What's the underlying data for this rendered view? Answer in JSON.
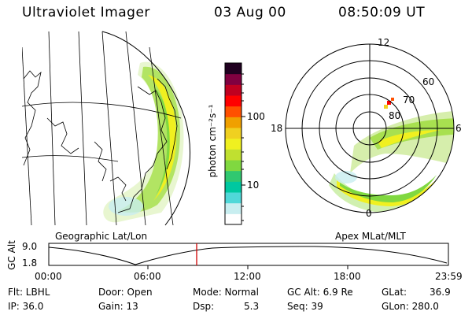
{
  "header": {
    "title": "Ultraviolet Imager",
    "date": "03 Aug 00",
    "time": "08:50:09 UT"
  },
  "geo_map": {
    "caption": "Geographic Lat/Lon"
  },
  "colorbar": {
    "unit_label": "photon cm⁻²s⁻¹",
    "ticks": [
      "100",
      "10"
    ],
    "colors": [
      "#ffffff",
      "#c8eef0",
      "#50d8d8",
      "#00c8a0",
      "#30c870",
      "#80d840",
      "#c0e030",
      "#f0f020",
      "#f0d020",
      "#f0a000",
      "#ff5000",
      "#ff0000",
      "#c00020",
      "#800040",
      "#200020"
    ]
  },
  "polar": {
    "caption": "Apex MLat/MLT",
    "mlt_labels": {
      "top": "12",
      "left": "18",
      "right": "6",
      "bottom": "0"
    },
    "lat_labels": [
      "60",
      "70",
      "80"
    ]
  },
  "altitude_plot": {
    "ylabel": "GC Alt",
    "y_ticks": [
      "9.0",
      "1.8"
    ],
    "x_ticks": [
      "00:00",
      "06:00",
      "12:00",
      "18:00",
      "23:59"
    ],
    "current_time_fraction": 0.37
  },
  "status": {
    "flt": "Flt: LBHL",
    "ip": "IP: 36.0",
    "door": "Door: Open",
    "gain": "Gain: 13",
    "mode": "Mode: Normal",
    "dsp_label": "Dsp:",
    "dsp_value": "5.3",
    "gcalt": "GC Alt: 6.9 Re",
    "seq": "Seq: 39",
    "glat_label": "GLat:",
    "glat_value": "36.9",
    "glon": "GLon: 280.0"
  }
}
